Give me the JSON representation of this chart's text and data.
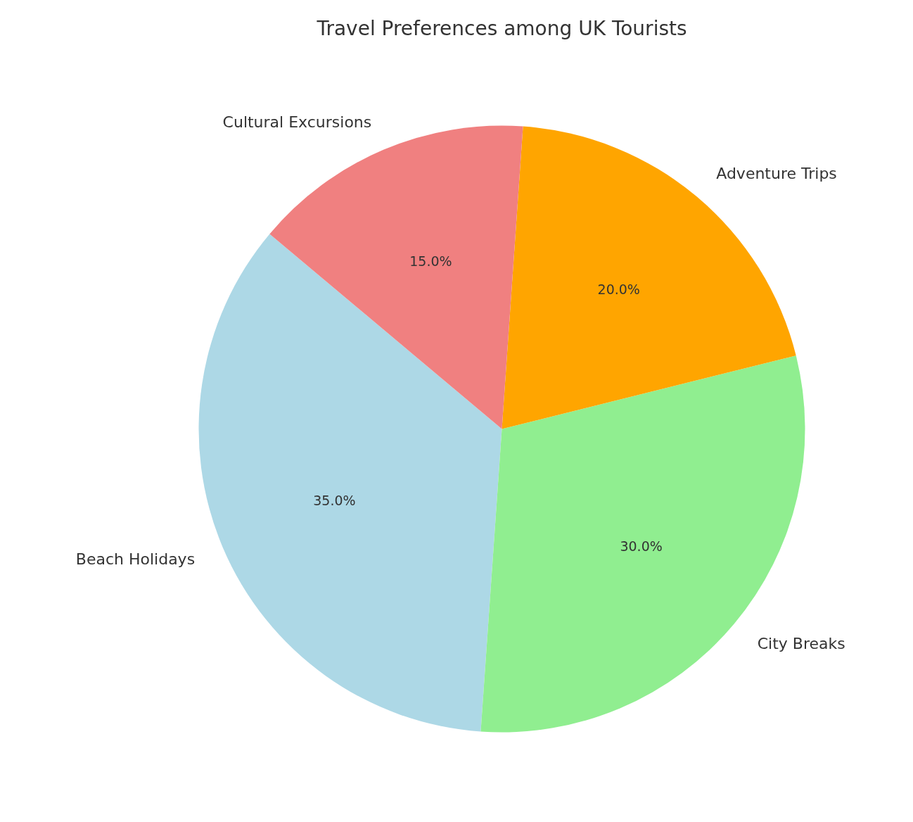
{
  "chart_data": {
    "type": "pie",
    "title": "Travel Preferences among UK Tourists",
    "categories": [
      "Beach Holidays",
      "City Breaks",
      "Adventure Trips",
      "Cultural Excursions"
    ],
    "values": [
      35,
      30,
      20,
      15
    ],
    "colors": [
      "#add8e6",
      "#90ee90",
      "#ffa500",
      "#f08080"
    ],
    "value_labels": [
      "35.0%",
      "30.0%",
      "20.0%",
      "15.0%"
    ],
    "legend": false
  }
}
